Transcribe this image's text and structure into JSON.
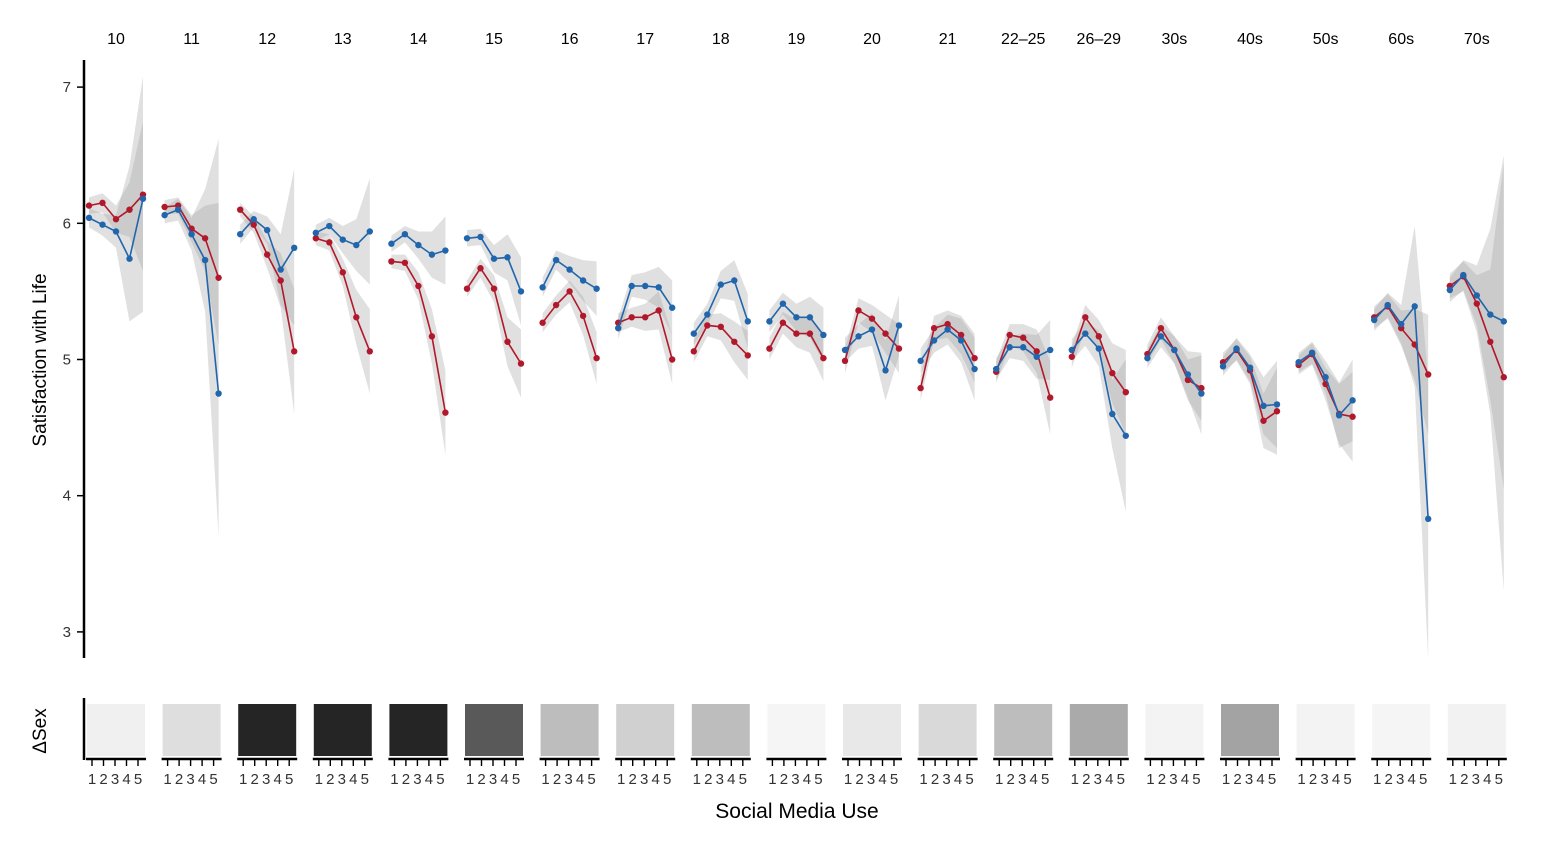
{
  "chart_data": {
    "type": "line",
    "xlabel": "Social Media Use",
    "ylabel": "Satisfaction with Life",
    "delta_label": "ΔSex",
    "ylim": [
      2.8,
      7.25
    ],
    "yticks": [
      3,
      4,
      5,
      6,
      7
    ],
    "x_ticks": [
      "1",
      "2",
      "3",
      "4",
      "5"
    ],
    "grid": false,
    "legend": "none",
    "colors": {
      "female": "#b2182b",
      "male": "#2166ac",
      "ribbon": "#a0a0a0"
    },
    "panels": [
      {
        "label": "10",
        "female": [
          6.13,
          6.15,
          6.03,
          6.1,
          6.21
        ],
        "male": [
          6.04,
          5.99,
          5.94,
          5.74,
          6.18
        ],
        "female_ci": [
          [
            6.07,
            6.19
          ],
          [
            6.08,
            6.22
          ],
          [
            5.93,
            6.13
          ],
          [
            5.9,
            6.3
          ],
          [
            5.65,
            6.75
          ]
        ],
        "male_ci": [
          [
            5.97,
            6.11
          ],
          [
            5.91,
            6.07
          ],
          [
            5.82,
            6.06
          ],
          [
            5.28,
            6.42
          ],
          [
            5.35,
            7.08
          ]
        ],
        "delta_shade": "#f0f0f0"
      },
      {
        "label": "11",
        "female": [
          6.12,
          6.13,
          5.96,
          5.89,
          5.6
        ],
        "male": [
          6.06,
          6.1,
          5.92,
          5.73,
          4.75
        ],
        "female_ci": [
          [
            6.07,
            6.17
          ],
          [
            6.07,
            6.19
          ],
          [
            5.86,
            6.06
          ],
          [
            5.65,
            6.13
          ],
          [
            5.1,
            6.15
          ]
        ],
        "male_ci": [
          [
            6.0,
            6.12
          ],
          [
            6.02,
            6.18
          ],
          [
            5.8,
            6.04
          ],
          [
            5.35,
            6.25
          ],
          [
            3.7,
            6.62
          ]
        ],
        "delta_shade": "#dedede"
      },
      {
        "label": "12",
        "female": [
          6.1,
          5.99,
          5.77,
          5.58,
          5.06
        ],
        "male": [
          5.92,
          6.03,
          5.95,
          5.66,
          5.82
        ],
        "female_ci": [
          [
            6.05,
            6.15
          ],
          [
            5.93,
            6.05
          ],
          [
            5.67,
            5.87
          ],
          [
            5.38,
            5.78
          ],
          [
            4.6,
            5.52
          ]
        ],
        "male_ci": [
          [
            5.85,
            5.99
          ],
          [
            5.97,
            6.09
          ],
          [
            5.85,
            6.05
          ],
          [
            5.4,
            5.92
          ],
          [
            5.25,
            6.4
          ]
        ],
        "delta_shade": "#252525"
      },
      {
        "label": "13",
        "female": [
          5.89,
          5.86,
          5.64,
          5.31,
          5.06
        ],
        "male": [
          5.93,
          5.98,
          5.88,
          5.84,
          5.94
        ],
        "female_ci": [
          [
            5.84,
            5.94
          ],
          [
            5.8,
            5.92
          ],
          [
            5.54,
            5.74
          ],
          [
            5.11,
            5.51
          ],
          [
            4.75,
            5.37
          ]
        ],
        "male_ci": [
          [
            5.87,
            5.99
          ],
          [
            5.92,
            6.04
          ],
          [
            5.78,
            5.98
          ],
          [
            5.65,
            6.03
          ],
          [
            5.55,
            6.33
          ]
        ],
        "delta_shade": "#252525"
      },
      {
        "label": "14",
        "female": [
          5.72,
          5.71,
          5.54,
          5.17,
          4.61
        ],
        "male": [
          5.85,
          5.92,
          5.84,
          5.77,
          5.8
        ],
        "female_ci": [
          [
            5.67,
            5.77
          ],
          [
            5.65,
            5.77
          ],
          [
            5.44,
            5.64
          ],
          [
            4.97,
            5.37
          ],
          [
            4.3,
            4.92
          ]
        ],
        "male_ci": [
          [
            5.79,
            5.91
          ],
          [
            5.86,
            5.98
          ],
          [
            5.74,
            5.94
          ],
          [
            5.6,
            5.94
          ],
          [
            5.55,
            6.05
          ]
        ],
        "delta_shade": "#252525"
      },
      {
        "label": "15",
        "female": [
          5.52,
          5.67,
          5.52,
          5.13,
          4.97
        ],
        "male": [
          5.89,
          5.9,
          5.74,
          5.75,
          5.5
        ],
        "female_ci": [
          [
            5.46,
            5.58
          ],
          [
            5.6,
            5.74
          ],
          [
            5.42,
            5.62
          ],
          [
            4.95,
            5.31
          ],
          [
            4.72,
            5.22
          ]
        ],
        "male_ci": [
          [
            5.83,
            5.95
          ],
          [
            5.84,
            5.96
          ],
          [
            5.64,
            5.84
          ],
          [
            5.58,
            5.92
          ],
          [
            5.25,
            5.75
          ]
        ],
        "delta_shade": "#595959"
      },
      {
        "label": "16",
        "female": [
          5.27,
          5.4,
          5.5,
          5.32,
          5.01
        ],
        "male": [
          5.53,
          5.73,
          5.66,
          5.58,
          5.52
        ],
        "female_ci": [
          [
            5.2,
            5.34
          ],
          [
            5.33,
            5.47
          ],
          [
            5.42,
            5.58
          ],
          [
            5.18,
            5.46
          ],
          [
            4.82,
            5.2
          ]
        ],
        "male_ci": [
          [
            5.46,
            5.6
          ],
          [
            5.66,
            5.8
          ],
          [
            5.56,
            5.76
          ],
          [
            5.43,
            5.73
          ],
          [
            5.32,
            5.72
          ]
        ],
        "delta_shade": "#bdbdbd"
      },
      {
        "label": "17",
        "female": [
          5.27,
          5.31,
          5.31,
          5.36,
          5.0
        ],
        "male": [
          5.23,
          5.54,
          5.54,
          5.53,
          5.38
        ],
        "female_ci": [
          [
            5.2,
            5.34
          ],
          [
            5.24,
            5.38
          ],
          [
            5.21,
            5.41
          ],
          [
            5.22,
            5.5
          ],
          [
            4.82,
            5.18
          ]
        ],
        "male_ci": [
          [
            5.15,
            5.31
          ],
          [
            5.46,
            5.62
          ],
          [
            5.44,
            5.64
          ],
          [
            5.38,
            5.68
          ],
          [
            5.18,
            5.58
          ]
        ],
        "delta_shade": "#d0d0d0"
      },
      {
        "label": "18",
        "female": [
          5.06,
          5.25,
          5.24,
          5.13,
          5.03
        ],
        "male": [
          5.19,
          5.33,
          5.55,
          5.58,
          5.28
        ],
        "female_ci": [
          [
            4.98,
            5.14
          ],
          [
            5.17,
            5.33
          ],
          [
            5.14,
            5.34
          ],
          [
            4.98,
            5.28
          ],
          [
            4.85,
            5.21
          ]
        ],
        "male_ci": [
          [
            5.11,
            5.27
          ],
          [
            5.25,
            5.41
          ],
          [
            5.45,
            5.65
          ],
          [
            5.43,
            5.73
          ],
          [
            5.08,
            5.48
          ]
        ],
        "delta_shade": "#bdbdbd"
      },
      {
        "label": "19",
        "female": [
          5.08,
          5.27,
          5.19,
          5.19,
          5.01
        ],
        "male": [
          5.28,
          5.41,
          5.31,
          5.31,
          5.18
        ],
        "female_ci": [
          [
            5.0,
            5.16
          ],
          [
            5.19,
            5.35
          ],
          [
            5.09,
            5.29
          ],
          [
            5.05,
            5.33
          ],
          [
            4.84,
            5.18
          ]
        ],
        "male_ci": [
          [
            5.2,
            5.36
          ],
          [
            5.33,
            5.49
          ],
          [
            5.21,
            5.41
          ],
          [
            5.16,
            5.46
          ],
          [
            4.98,
            5.38
          ]
        ],
        "delta_shade": "#f5f5f5"
      },
      {
        "label": "20",
        "female": [
          4.99,
          5.36,
          5.3,
          5.19,
          5.08
        ],
        "male": [
          5.07,
          5.17,
          5.22,
          4.92,
          5.25
        ],
        "female_ci": [
          [
            4.9,
            5.08
          ],
          [
            5.27,
            5.45
          ],
          [
            5.2,
            5.4
          ],
          [
            5.05,
            5.33
          ],
          [
            4.9,
            5.26
          ]
        ],
        "male_ci": [
          [
            4.98,
            5.16
          ],
          [
            5.08,
            5.26
          ],
          [
            5.1,
            5.34
          ],
          [
            4.7,
            5.14
          ],
          [
            5.03,
            5.47
          ]
        ],
        "delta_shade": "#e8e8e8"
      },
      {
        "label": "21",
        "female": [
          4.79,
          5.23,
          5.26,
          5.18,
          5.01
        ],
        "male": [
          4.99,
          5.14,
          5.22,
          5.14,
          4.93
        ],
        "female_ci": [
          [
            4.7,
            4.88
          ],
          [
            5.14,
            5.32
          ],
          [
            5.16,
            5.36
          ],
          [
            5.04,
            5.32
          ],
          [
            4.83,
            5.19
          ]
        ],
        "male_ci": [
          [
            4.9,
            5.08
          ],
          [
            5.05,
            5.23
          ],
          [
            5.11,
            5.33
          ],
          [
            4.98,
            5.3
          ],
          [
            4.7,
            5.16
          ]
        ],
        "delta_shade": "#d9d9d9"
      },
      {
        "label": "22–25",
        "female": [
          4.91,
          5.18,
          5.16,
          5.06,
          4.72
        ],
        "male": [
          4.93,
          5.09,
          5.09,
          5.02,
          5.07
        ],
        "female_ci": [
          [
            4.83,
            4.99
          ],
          [
            5.1,
            5.26
          ],
          [
            5.06,
            5.26
          ],
          [
            4.9,
            5.22
          ],
          [
            4.45,
            4.99
          ]
        ],
        "male_ci": [
          [
            4.85,
            5.01
          ],
          [
            5.01,
            5.17
          ],
          [
            4.99,
            5.19
          ],
          [
            4.86,
            5.18
          ],
          [
            4.85,
            5.29
          ]
        ],
        "delta_shade": "#bdbdbd"
      },
      {
        "label": "26–29",
        "female": [
          5.02,
          5.31,
          5.17,
          4.9,
          4.76
        ],
        "male": [
          5.07,
          5.19,
          5.08,
          4.6,
          4.44
        ],
        "female_ci": [
          [
            4.94,
            5.1
          ],
          [
            5.22,
            5.4
          ],
          [
            5.05,
            5.29
          ],
          [
            4.68,
            5.12
          ],
          [
            4.45,
            5.07
          ]
        ],
        "male_ci": [
          [
            4.99,
            5.15
          ],
          [
            5.1,
            5.28
          ],
          [
            4.95,
            5.21
          ],
          [
            4.35,
            4.85
          ],
          [
            3.88,
            5.0
          ]
        ],
        "delta_shade": "#aaaaaa"
      },
      {
        "label": "30s",
        "female": [
          5.04,
          5.23,
          5.07,
          4.85,
          4.79
        ],
        "male": [
          5.01,
          5.17,
          5.07,
          4.89,
          4.75
        ],
        "female_ci": [
          [
            4.97,
            5.11
          ],
          [
            5.15,
            5.31
          ],
          [
            4.97,
            5.17
          ],
          [
            4.7,
            5.0
          ],
          [
            4.55,
            5.03
          ]
        ],
        "male_ci": [
          [
            4.94,
            5.08
          ],
          [
            5.09,
            5.25
          ],
          [
            4.97,
            5.17
          ],
          [
            4.72,
            5.06
          ],
          [
            4.45,
            5.05
          ]
        ],
        "delta_shade": "#f3f3f3"
      },
      {
        "label": "40s",
        "female": [
          4.98,
          5.07,
          4.92,
          4.55,
          4.62
        ],
        "male": [
          4.95,
          5.08,
          4.94,
          4.66,
          4.67
        ],
        "female_ci": [
          [
            4.91,
            5.05
          ],
          [
            4.99,
            5.15
          ],
          [
            4.82,
            5.02
          ],
          [
            4.35,
            4.75
          ],
          [
            4.3,
            4.94
          ]
        ],
        "male_ci": [
          [
            4.88,
            5.02
          ],
          [
            5.0,
            5.16
          ],
          [
            4.84,
            5.04
          ],
          [
            4.45,
            4.87
          ],
          [
            4.35,
            4.99
          ]
        ],
        "delta_shade": "#a3a3a3"
      },
      {
        "label": "50s",
        "female": [
          4.96,
          5.04,
          4.82,
          4.6,
          4.58
        ],
        "male": [
          4.98,
          5.05,
          4.87,
          4.59,
          4.7
        ],
        "female_ci": [
          [
            4.89,
            5.03
          ],
          [
            4.96,
            5.12
          ],
          [
            4.7,
            4.94
          ],
          [
            4.38,
            4.82
          ],
          [
            4.25,
            4.91
          ]
        ],
        "male_ci": [
          [
            4.91,
            5.05
          ],
          [
            4.97,
            5.13
          ],
          [
            4.75,
            4.99
          ],
          [
            4.35,
            4.83
          ],
          [
            4.4,
            5.0
          ]
        ],
        "delta_shade": "#f3f3f3"
      },
      {
        "label": "60s",
        "female": [
          5.31,
          5.39,
          5.23,
          5.11,
          4.89
        ],
        "male": [
          5.29,
          5.4,
          5.26,
          5.39,
          3.83
        ],
        "female_ci": [
          [
            5.23,
            5.39
          ],
          [
            5.3,
            5.48
          ],
          [
            5.1,
            5.36
          ],
          [
            4.85,
            5.37
          ],
          [
            4.45,
            5.33
          ]
        ],
        "male_ci": [
          [
            5.21,
            5.37
          ],
          [
            5.31,
            5.49
          ],
          [
            5.12,
            5.4
          ],
          [
            4.8,
            5.98
          ],
          [
            2.8,
            4.86
          ]
        ],
        "delta_shade": "#f5f5f5"
      },
      {
        "label": "70s",
        "female": [
          5.54,
          5.61,
          5.41,
          5.13,
          4.87
        ],
        "male": [
          5.51,
          5.62,
          5.47,
          5.33,
          5.28
        ],
        "female_ci": [
          [
            5.45,
            5.63
          ],
          [
            5.5,
            5.72
          ],
          [
            5.2,
            5.62
          ],
          [
            4.6,
            5.66
          ],
          [
            3.3,
            6.44
          ]
        ],
        "male_ci": [
          [
            5.42,
            5.6
          ],
          [
            5.51,
            5.73
          ],
          [
            5.25,
            5.69
          ],
          [
            4.7,
            5.96
          ],
          [
            4.05,
            6.5
          ]
        ],
        "delta_shade": "#f2f2f2"
      }
    ]
  }
}
